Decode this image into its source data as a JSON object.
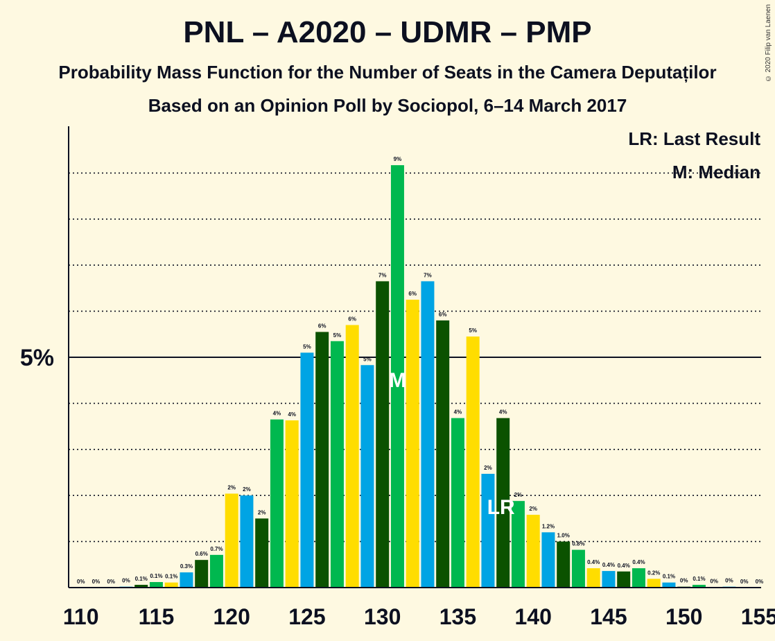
{
  "title": "PNL – A2020 – UDMR – PMP",
  "subtitle": "Probability Mass Function for the Number of Seats in the Camera Deputaților",
  "subtitle2": "Based on an Opinion Poll by Sociopol, 6–14 March 2017",
  "copyright": "© 2020 Filip van Laenen",
  "legend": {
    "lr": "LR: Last Result",
    "median": "M: Median"
  },
  "markers": {
    "median_label": "M",
    "median_seat": 131,
    "lr_label": "LR",
    "lr_seat": 138
  },
  "colors": {
    "background": "#fef9e1",
    "palette": [
      "#0b5200",
      "#00b84f",
      "#ffdd00",
      "#00a4e4"
    ]
  },
  "chart_data": {
    "type": "bar",
    "x": [
      110,
      111,
      112,
      113,
      114,
      115,
      116,
      117,
      118,
      119,
      120,
      121,
      122,
      123,
      124,
      125,
      126,
      127,
      128,
      129,
      130,
      131,
      132,
      133,
      134,
      135,
      136,
      137,
      138,
      139,
      140,
      141,
      142,
      143,
      144,
      145,
      146,
      147,
      148,
      149,
      150,
      151,
      152,
      153,
      154,
      155
    ],
    "values": [
      0,
      0,
      0,
      0.02,
      0.06,
      0.12,
      0.11,
      0.33,
      0.6,
      0.71,
      2.04,
      2.0,
      1.5,
      3.65,
      3.63,
      5.1,
      5.55,
      5.35,
      5.7,
      4.83,
      6.65,
      9.17,
      6.25,
      6.65,
      5.8,
      3.68,
      5.45,
      2.47,
      3.68,
      1.88,
      1.58,
      1.2,
      1.0,
      0.82,
      0.42,
      0.36,
      0.35,
      0.42,
      0.19,
      0.11,
      0.02,
      0.06,
      0.01,
      0.02,
      0,
      0
    ],
    "labels": [
      "0%",
      "0%",
      "0%",
      "0%",
      "0.1%",
      "0.1%",
      "0.1%",
      "0.3%",
      "0.6%",
      "0.7%",
      "2%",
      "2%",
      "2%",
      "4%",
      "4%",
      "5%",
      "6%",
      "5%",
      "6%",
      "5%",
      "7%",
      "9%",
      "6%",
      "7%",
      "6%",
      "4%",
      "5%",
      "2%",
      "4%",
      "2%",
      "2%",
      "1.2%",
      "1.0%",
      "0.8%",
      "0.4%",
      "0.4%",
      "0.4%",
      "0.4%",
      "0.2%",
      "0.1%",
      "0%",
      "0.1%",
      "0%",
      "0%",
      "0%",
      "0%"
    ],
    "x_ticks": [
      110,
      115,
      120,
      125,
      130,
      135,
      140,
      145,
      150,
      155
    ],
    "y_ticks": [
      {
        "value": 5,
        "label": "5%"
      }
    ],
    "ylim": [
      0,
      10
    ],
    "grid": "dotted every 1%, solid at 5%",
    "legend_position": "top-right"
  }
}
